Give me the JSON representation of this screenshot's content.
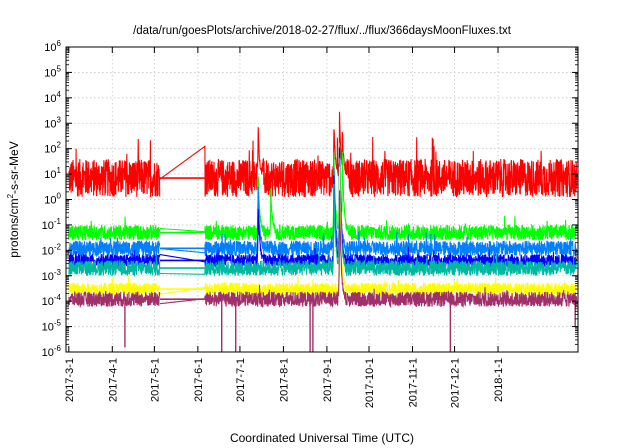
{
  "chart_data": {
    "type": "line",
    "title": "/data/run/goesPlots/archive/2018-02-27/flux/../flux/366daysMoonFluxes.txt",
    "xlabel": "Coordinated Universal Time (UTC)",
    "ylabel": "protons/cm²-s-sr-MeV",
    "ylabel_parts": {
      "base": "protons/cm",
      "sup": "2",
      "rest": "-s-sr-MeV"
    },
    "xlim": [
      "2017-02-27",
      "2018-02-27"
    ],
    "ylim": [
      1e-06,
      1000000.0
    ],
    "y_scale": "log",
    "grid": true,
    "x_ticks": [
      "2017-3-1",
      "2017-4-1",
      "2017-5-1",
      "2017-6-1",
      "2017-7-1",
      "2017-8-1",
      "2017-9-1",
      "2017-10-1",
      "2017-11-1",
      "2017-12-1",
      "2018-1-1"
    ],
    "y_ticks": [
      {
        "base": "10",
        "exp": "-6",
        "value": 1e-06
      },
      {
        "base": "10",
        "exp": "-5",
        "value": 1e-05
      },
      {
        "base": "10",
        "exp": "-4",
        "value": 0.0001
      },
      {
        "base": "10",
        "exp": "-3",
        "value": 0.001
      },
      {
        "base": "10",
        "exp": "-2",
        "value": 0.01
      },
      {
        "base": "10",
        "exp": "-1",
        "value": 0.1
      },
      {
        "base": "10",
        "exp": "0",
        "value": 1
      },
      {
        "base": "10",
        "exp": "1",
        "value": 10
      },
      {
        "base": "10",
        "exp": "2",
        "value": 100
      },
      {
        "base": "10",
        "exp": "3",
        "value": 1000
      },
      {
        "base": "10",
        "exp": "4",
        "value": 10000
      },
      {
        "base": "10",
        "exp": "5",
        "value": 100000
      },
      {
        "base": "10",
        "exp": "6",
        "value": 1000000
      }
    ],
    "data_gap": [
      "2017-05-05",
      "2017-06-06"
    ],
    "series": [
      {
        "color": "#ff0000",
        "baseline": 7,
        "noise_decades": 0.75,
        "peaks": [
          {
            "date": "2017-07-14",
            "value": 600
          },
          {
            "date": "2017-09-06",
            "value": 700
          },
          {
            "date": "2017-09-10",
            "value": 3000
          },
          {
            "date": "2017-09-12",
            "value": 500
          }
        ]
      },
      {
        "color": "#00ff00",
        "baseline": 0.05,
        "noise_decades": 0.3,
        "peaks": [
          {
            "date": "2017-07-14",
            "value": 10
          },
          {
            "date": "2017-07-23",
            "value": 2
          },
          {
            "date": "2017-09-06",
            "value": 50
          },
          {
            "date": "2017-09-10",
            "value": 200
          },
          {
            "date": "2017-09-12",
            "value": 60
          }
        ]
      },
      {
        "color": "#0080ff",
        "baseline": 0.012,
        "noise_decades": 0.3,
        "peaks": [
          {
            "date": "2017-07-14",
            "value": 3
          },
          {
            "date": "2017-09-06",
            "value": 20
          },
          {
            "date": "2017-09-10",
            "value": 120
          }
        ]
      },
      {
        "color": "#0000ff",
        "baseline": 0.004,
        "noise_decades": 0.25,
        "peaks": [
          {
            "date": "2017-07-14",
            "value": 0.5
          },
          {
            "date": "2017-09-06",
            "value": 10
          },
          {
            "date": "2017-09-10",
            "value": 80
          }
        ]
      },
      {
        "color": "#00b8a0",
        "baseline": 0.002,
        "noise_decades": 0.3,
        "peaks": [
          {
            "date": "2017-09-06",
            "value": 3
          },
          {
            "date": "2017-09-10",
            "value": 40
          }
        ]
      },
      {
        "color": "#ffff00",
        "baseline": 0.0003,
        "noise_decades": 0.25,
        "peaks": [
          {
            "date": "2017-09-10",
            "value": 20
          }
        ]
      },
      {
        "color": "#a0306a",
        "baseline": 0.00012,
        "noise_decades": 0.3,
        "peaks": [
          {
            "date": "2017-09-10",
            "value": 2
          }
        ]
      }
    ],
    "dropouts": [
      {
        "date": "2017-04-10",
        "value": 1.5e-06
      },
      {
        "date": "2017-06-18",
        "value": 1e-06
      },
      {
        "date": "2017-06-28",
        "value": 1e-06
      },
      {
        "date": "2017-08-20",
        "value": 1e-06
      },
      {
        "date": "2017-08-22",
        "value": 1e-06
      },
      {
        "date": "2017-11-28",
        "value": 1e-06
      },
      {
        "date": "2018-02-25",
        "value": 1e-05
      }
    ]
  }
}
